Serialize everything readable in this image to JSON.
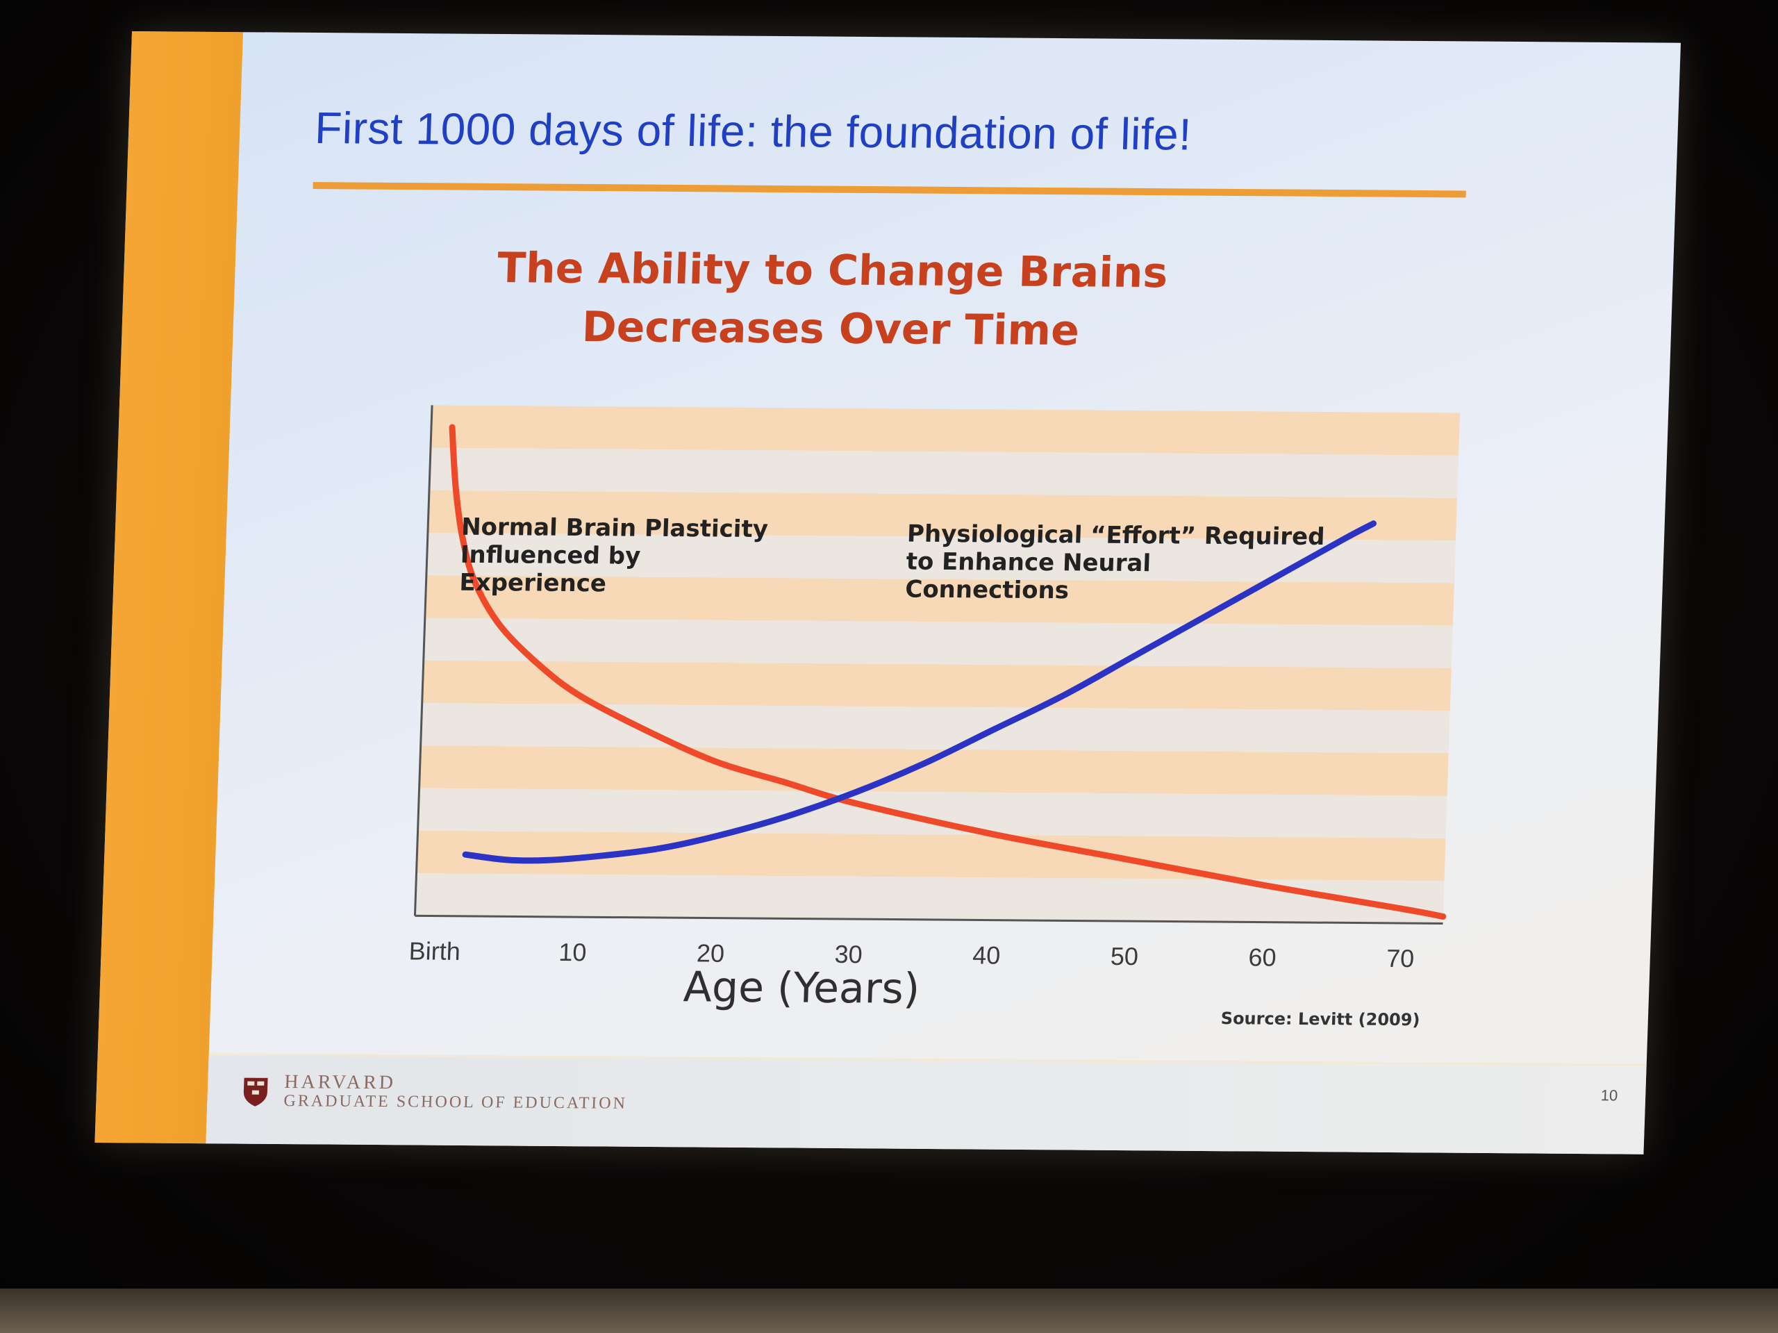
{
  "slide": {
    "title": "First 1000 days of life: the foundation of life!",
    "page_number": "10"
  },
  "footer": {
    "university": "HARVARD",
    "school": "GRADUATE SCHOOL OF EDUCATION"
  },
  "colors": {
    "title_blue": "#1f3fc4",
    "heading_red": "#c7411f",
    "accent_orange": "#ee9c35",
    "plasticity_red": "#ee4a2a",
    "effort_blue": "#2a33c4",
    "band_peach": "#f7d9b8"
  },
  "chart_data": {
    "type": "line",
    "title_lines": [
      "The Ability to Change Brains",
      "Decreases Over Time"
    ],
    "xlabel": "Age (Years)",
    "ylabel": "",
    "x_ticks": [
      {
        "value": 0,
        "label": "Birth"
      },
      {
        "value": 10,
        "label": "10"
      },
      {
        "value": 20,
        "label": "20"
      },
      {
        "value": 30,
        "label": "30"
      },
      {
        "value": 40,
        "label": "40"
      },
      {
        "value": 50,
        "label": "50"
      },
      {
        "value": 60,
        "label": "60"
      },
      {
        "value": 70,
        "label": "70"
      }
    ],
    "xlim": [
      0,
      73
    ],
    "ylim": [
      0,
      100
    ],
    "grid": "horizontal bands",
    "series": [
      {
        "key": "plasticity",
        "name": "Normal Brain Plasticity Influenced by Experience",
        "label_lines": [
          "Normal Brain Plasticity",
          "Influenced by",
          "Experience"
        ],
        "color": "#ee4a2a",
        "points": [
          [
            0,
            97
          ],
          [
            0.4,
            85
          ],
          [
            1,
            75
          ],
          [
            2,
            66
          ],
          [
            4,
            57
          ],
          [
            7,
            49
          ],
          [
            10,
            43
          ],
          [
            15,
            36
          ],
          [
            20,
            30
          ],
          [
            25,
            26
          ],
          [
            30,
            22
          ],
          [
            40,
            16
          ],
          [
            50,
            11
          ],
          [
            60,
            6
          ],
          [
            70,
            1.5
          ],
          [
            73,
            0
          ]
        ]
      },
      {
        "key": "effort",
        "name": "Physiological “Effort” Required to Enhance Neural Connections",
        "label_lines": [
          "Physiological “Effort” Required",
          "to Enhance Neural",
          "Connections"
        ],
        "color": "#2a33c4",
        "points": [
          [
            2,
            11
          ],
          [
            5,
            10
          ],
          [
            8,
            10
          ],
          [
            12,
            11
          ],
          [
            16,
            12.5
          ],
          [
            20,
            15
          ],
          [
            25,
            19
          ],
          [
            30,
            24
          ],
          [
            35,
            30
          ],
          [
            40,
            37
          ],
          [
            45,
            44
          ],
          [
            50,
            52
          ],
          [
            55,
            60
          ],
          [
            60,
            68
          ],
          [
            65,
            76
          ],
          [
            67,
            79
          ]
        ]
      }
    ],
    "source": "Source: Levitt (2009)"
  }
}
